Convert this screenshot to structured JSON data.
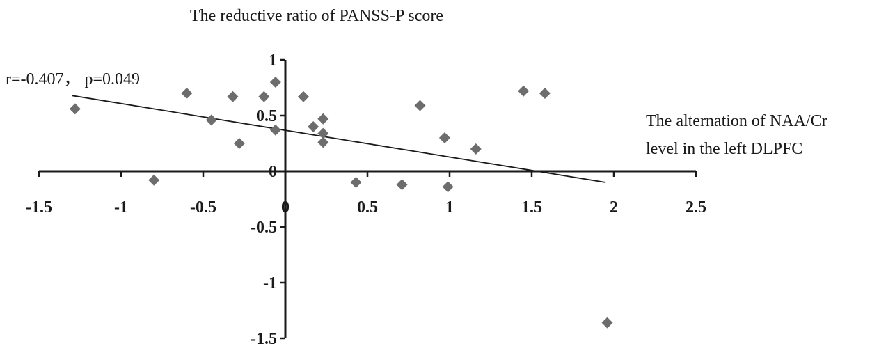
{
  "chart_data": {
    "type": "scatter",
    "title": "The reductive ratio of PANSS-P score",
    "xlabel": "The alternation of NAA/Cr level in the left DLPFC",
    "xlabel_lines": [
      "The alternation of NAA/Cr",
      "level in the left DLPFC"
    ],
    "ylabel": "",
    "annotation": "r=-0.407， p=0.049",
    "xlim": [
      -1.5,
      2.5
    ],
    "ylim": [
      -1.5,
      1
    ],
    "x_ticks": [
      -1.5,
      -1,
      -0.5,
      0,
      0.5,
      1,
      1.5,
      2,
      2.5
    ],
    "x_tick_labels": [
      "-1.5",
      "-1",
      "-0.5",
      "0",
      "0.5",
      "1",
      "1.5",
      "2",
      "2.5"
    ],
    "y_ticks": [
      -1.5,
      -1,
      -0.5,
      0,
      0.5,
      1
    ],
    "y_tick_labels": [
      "-1.5",
      "-1",
      "-0.5",
      "0",
      "0.5",
      "1"
    ],
    "grid": false,
    "marker": "diamond",
    "marker_color": "#6d6d6d",
    "line_color": "#1a1a1a",
    "trendline": {
      "x": [
        -1.3,
        1.95
      ],
      "y": [
        0.68,
        -0.1
      ]
    },
    "series": [
      {
        "points": [
          {
            "x": -1.28,
            "y": 0.56
          },
          {
            "x": -0.8,
            "y": -0.08
          },
          {
            "x": -0.6,
            "y": 0.7
          },
          {
            "x": -0.45,
            "y": 0.46
          },
          {
            "x": -0.32,
            "y": 0.67
          },
          {
            "x": -0.28,
            "y": 0.25
          },
          {
            "x": -0.13,
            "y": 0.67
          },
          {
            "x": -0.06,
            "y": 0.8
          },
          {
            "x": -0.06,
            "y": 0.37
          },
          {
            "x": 0.11,
            "y": 0.67
          },
          {
            "x": 0.17,
            "y": 0.4
          },
          {
            "x": 0.23,
            "y": 0.47
          },
          {
            "x": 0.23,
            "y": 0.34
          },
          {
            "x": 0.23,
            "y": 0.26
          },
          {
            "x": 0.43,
            "y": -0.1
          },
          {
            "x": 0.71,
            "y": -0.12
          },
          {
            "x": 0.82,
            "y": 0.59
          },
          {
            "x": 0.97,
            "y": 0.3
          },
          {
            "x": 0.99,
            "y": -0.14
          },
          {
            "x": 1.16,
            "y": 0.2
          },
          {
            "x": 1.45,
            "y": 0.72
          },
          {
            "x": 1.58,
            "y": 0.7
          },
          {
            "x": 1.96,
            "y": -1.36
          }
        ]
      }
    ]
  }
}
